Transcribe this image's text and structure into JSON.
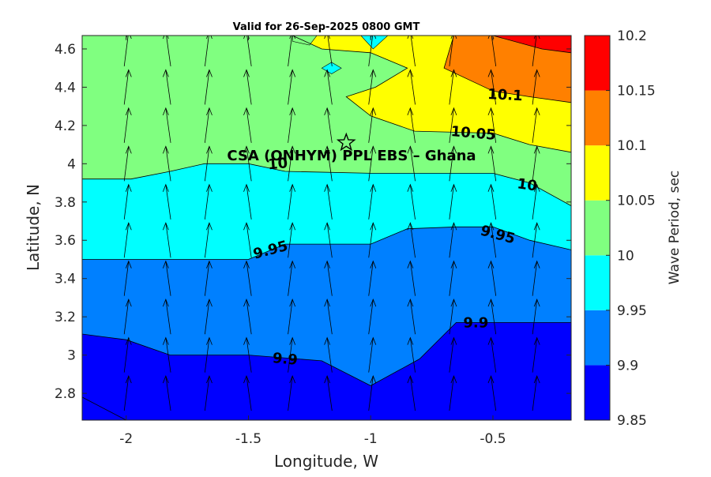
{
  "chart_data": {
    "type": "contourf",
    "title": "Valid for 26-Sep-2025 0800 GMT",
    "xlabel": "Longitude, W",
    "ylabel": "Latitude, N",
    "xlim": [
      -2.18,
      -0.18
    ],
    "ylim": [
      2.66,
      4.67
    ],
    "x_ticks": [
      -2,
      -1.5,
      -1,
      -0.5
    ],
    "x_tick_labels": [
      "-2",
      "-1.5",
      "-1",
      "-0.5"
    ],
    "y_ticks": [
      2.8,
      3.0,
      3.2,
      3.4,
      3.6,
      3.8,
      4.0,
      4.2,
      4.4,
      4.6
    ],
    "y_tick_labels": [
      "2.8",
      "3",
      "3.2",
      "3.4",
      "3.6",
      "3.8",
      "4",
      "4.2",
      "4.4",
      "4.6"
    ],
    "annotation": "CSA (ONHYM) PPL EBS  – Ghana",
    "marker": {
      "type": "star",
      "lon": -1.1,
      "lat": 4.11
    },
    "colorbar": {
      "label": "Wave Period, sec",
      "levels": [
        9.85,
        9.9,
        9.95,
        10,
        10.05,
        10.1,
        10.15,
        10.2
      ],
      "tick_labels": [
        "9.85",
        "9.9",
        "9.95",
        "10",
        "10.05",
        "10.1",
        "10.15",
        "10.2"
      ],
      "colors": [
        "#0000ff",
        "#0080ff",
        "#00ffff",
        "#80ff80",
        "#ffff00",
        "#ff8000",
        "#ff0000"
      ]
    },
    "contour_lines": [
      {
        "level": 9.9,
        "label": "9.9",
        "points": [
          [
            -2.18,
            3.11
          ],
          [
            -2.0,
            3.08
          ],
          [
            -1.82,
            3.0
          ],
          [
            -1.5,
            3.0
          ],
          [
            -1.2,
            2.97
          ],
          [
            -1.0,
            2.84
          ],
          [
            -0.8,
            2.98
          ],
          [
            -0.65,
            3.17
          ],
          [
            -0.18,
            3.17
          ]
        ]
      },
      {
        "level": 9.95,
        "label": "9.95",
        "points": [
          [
            -2.18,
            3.5
          ],
          [
            -1.5,
            3.5
          ],
          [
            -1.35,
            3.58
          ],
          [
            -1.0,
            3.58
          ],
          [
            -0.85,
            3.66
          ],
          [
            -0.65,
            3.67
          ],
          [
            -0.5,
            3.67
          ],
          [
            -0.35,
            3.6
          ],
          [
            -0.18,
            3.55
          ]
        ]
      },
      {
        "level": 10.0,
        "label": "10",
        "points": [
          [
            -2.18,
            3.92
          ],
          [
            -1.98,
            3.92
          ],
          [
            -1.82,
            3.96
          ],
          [
            -1.68,
            4.0
          ],
          [
            -1.5,
            4.0
          ],
          [
            -1.35,
            3.96
          ],
          [
            -1.0,
            3.95
          ],
          [
            -0.5,
            3.95
          ],
          [
            -0.35,
            3.9
          ],
          [
            -0.18,
            3.78
          ]
        ]
      },
      {
        "level": 10.05,
        "label": "10.05",
        "points": [
          [
            -1.32,
            4.67
          ],
          [
            -1.2,
            4.6
          ],
          [
            -1.0,
            4.58
          ],
          [
            -0.85,
            4.5
          ],
          [
            -0.98,
            4.4
          ],
          [
            -1.1,
            4.35
          ],
          [
            -1.0,
            4.25
          ],
          [
            -0.82,
            4.17
          ],
          [
            -0.5,
            4.16
          ],
          [
            -0.35,
            4.1
          ],
          [
            -0.18,
            4.06
          ]
        ]
      },
      {
        "level": 10.1,
        "label": "10.1",
        "points": [
          [
            -0.66,
            4.67
          ],
          [
            -0.7,
            4.5
          ],
          [
            -0.5,
            4.38
          ],
          [
            -0.35,
            4.35
          ],
          [
            -0.18,
            4.32
          ]
        ]
      },
      {
        "level": 10.15,
        "label": "",
        "points": [
          [
            -0.5,
            4.67
          ],
          [
            -0.3,
            4.6
          ],
          [
            -0.18,
            4.58
          ]
        ]
      }
    ],
    "contour_labels": [
      {
        "text": "9.9",
        "lon": -1.35,
        "lat": 2.98,
        "angle": 5
      },
      {
        "text": "9.9",
        "lon": -0.57,
        "lat": 3.17,
        "angle": 0
      },
      {
        "text": "9.95",
        "lon": -1.41,
        "lat": 3.55,
        "angle": -15
      },
      {
        "text": "9.95",
        "lon": -0.48,
        "lat": 3.63,
        "angle": 15
      },
      {
        "text": "10",
        "lon": -1.38,
        "lat": 4.0,
        "angle": -5
      },
      {
        "text": "10",
        "lon": -0.36,
        "lat": 3.89,
        "angle": 8
      },
      {
        "text": "10.05",
        "lon": -0.58,
        "lat": 4.16,
        "angle": 5
      },
      {
        "text": "10.1",
        "lon": -0.45,
        "lat": 4.36,
        "angle": 3
      }
    ],
    "vector_field": {
      "lons": [
        -2.0,
        -1.83,
        -1.67,
        -1.5,
        -1.33,
        -1.17,
        -1.0,
        -0.83,
        -0.67,
        -0.5,
        -0.33
      ],
      "lats": [
        2.8,
        3.0,
        3.2,
        3.4,
        3.6,
        3.8,
        4.0,
        4.2,
        4.4,
        4.6
      ],
      "direction": "toward north"
    }
  }
}
